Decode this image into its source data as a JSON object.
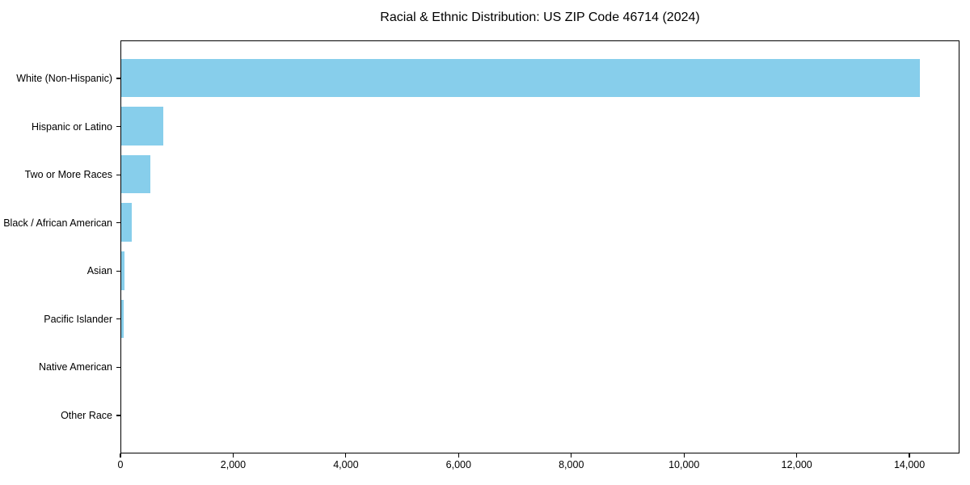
{
  "chart_data": {
    "type": "bar",
    "orientation": "horizontal",
    "title": "Racial & Ethnic Distribution: US ZIP Code 46714 (2024)",
    "categories": [
      "White (Non-Hispanic)",
      "Hispanic or Latino",
      "Two or More Races",
      "Black / African American",
      "Asian",
      "Pacific Islander",
      "Native American",
      "Other Race"
    ],
    "values": [
      14170,
      748,
      516,
      187,
      57,
      43,
      0,
      0
    ],
    "xlabel": "",
    "ylabel": "",
    "xlim": [
      0,
      14888
    ],
    "x_ticks": [
      0,
      2000,
      4000,
      6000,
      8000,
      10000,
      12000,
      14000
    ],
    "x_tick_labels": [
      "0",
      "2,000",
      "4,000",
      "6,000",
      "8,000",
      "10,000",
      "12,000",
      "14,000"
    ],
    "bar_height_fraction": 0.8,
    "grid": false,
    "legend": null,
    "colors": {
      "bar": "#87CEEB",
      "spine": "#000000",
      "text": "#000000",
      "background": "#FFFFFF"
    }
  }
}
